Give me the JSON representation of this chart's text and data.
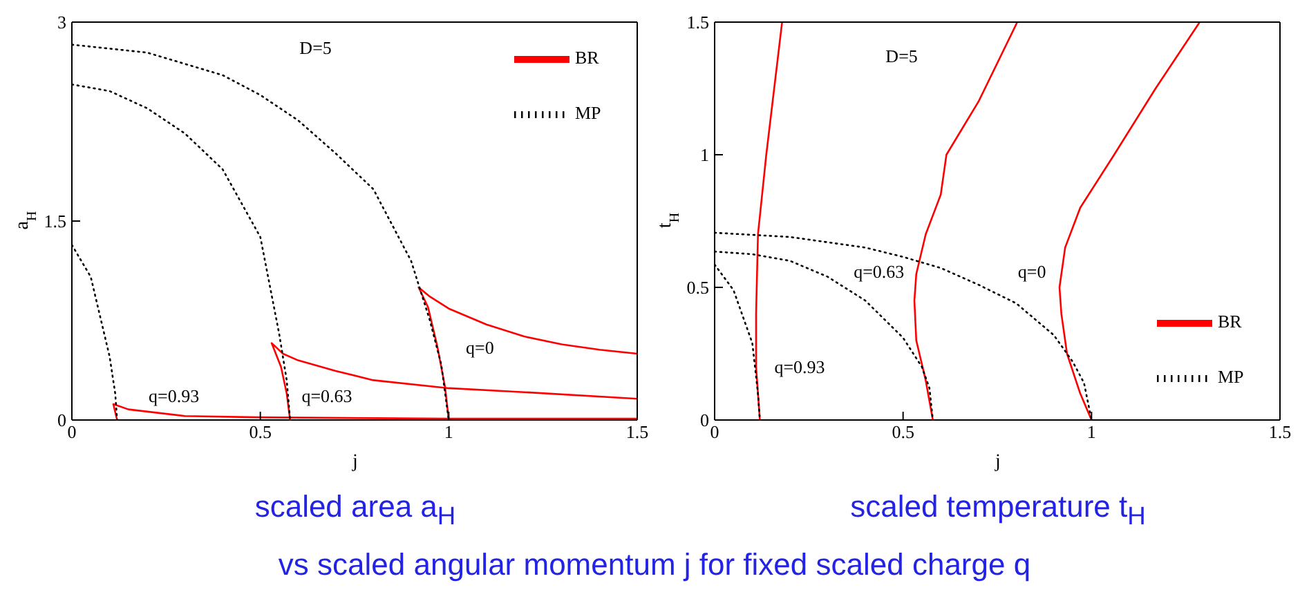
{
  "chart_data": [
    {
      "type": "line",
      "title": "scaled area a$_{H}$",
      "xlabel": "j",
      "ylabel": "a$_{H}$",
      "xlim": [
        0,
        1.5
      ],
      "ylim": [
        0,
        3
      ],
      "xticks": [
        0,
        0.5,
        1,
        1.5
      ],
      "yticks": [
        0,
        1.5,
        3
      ],
      "legend": "top right",
      "series": [
        {
          "name": "BR",
          "color": "#ff0000",
          "line_style": "solid",
          "x": [
            1.0,
            0.99,
            0.97,
            0.945,
            0.92,
            0.95,
            1.0,
            1.1,
            1.2,
            1.3,
            1.4,
            1.5
          ],
          "values": [
            0,
            0.25,
            0.55,
            0.85,
            1.0,
            0.93,
            0.84,
            0.72,
            0.63,
            0.57,
            0.53,
            0.5
          ]
        },
        {
          "color": "#ff0000",
          "line_style": "solid",
          "x": [
            0.579,
            0.57,
            0.555,
            0.53,
            0.56,
            0.6,
            0.7,
            0.8,
            1.0,
            1.2,
            1.5
          ],
          "values": [
            0,
            0.2,
            0.4,
            0.58,
            0.5,
            0.45,
            0.37,
            0.3,
            0.24,
            0.21,
            0.16
          ]
        },
        {
          "color": "#ff0000",
          "line_style": "solid",
          "x": [
            0.12,
            0.115,
            0.11,
            0.15,
            0.3,
            0.5,
            1.0,
            1.5
          ],
          "values": [
            0,
            0.06,
            0.12,
            0.08,
            0.03,
            0.02,
            0.01,
            0.01
          ]
        },
        {
          "name": "MP",
          "color": "#000000",
          "line_style": "dotted",
          "x": [
            0,
            0.2,
            0.4,
            0.5,
            0.6,
            0.7,
            0.8,
            0.9,
            0.95,
            0.98,
            1.0
          ],
          "values": [
            2.83,
            2.77,
            2.6,
            2.45,
            2.26,
            2.01,
            1.74,
            1.2,
            0.75,
            0.42,
            0
          ]
        },
        {
          "color": "#000000",
          "line_style": "dotted",
          "x": [
            0,
            0.1,
            0.2,
            0.3,
            0.4,
            0.5,
            0.55,
            0.57,
            0.579
          ],
          "values": [
            2.53,
            2.48,
            2.35,
            2.16,
            1.89,
            1.38,
            0.65,
            0.3,
            0
          ]
        },
        {
          "color": "#000000",
          "line_style": "dotted",
          "x": [
            0,
            0.05,
            0.1,
            0.115,
            0.12
          ],
          "values": [
            1.32,
            1.08,
            0.48,
            0.2,
            0
          ]
        }
      ],
      "annotations": [
        "D=5",
        "q=0.93",
        "q=0.63",
        "q=0"
      ]
    },
    {
      "type": "line",
      "title": "scaled temperature t$_{H}$",
      "xlabel": "j",
      "ylabel": "t$_{H}$",
      "xlim": [
        0,
        1.5
      ],
      "ylim": [
        0,
        1.5
      ],
      "xticks": [
        0,
        0.5,
        1,
        1.5
      ],
      "yticks": [
        0,
        0.5,
        1,
        1.5
      ],
      "legend": "bottom right",
      "series": [
        {
          "name": "BR",
          "color": "#ff0000",
          "line_style": "solid",
          "x": [
            1.0,
            0.97,
            0.935,
            0.92,
            0.915,
            0.93,
            0.97,
            1.06,
            1.17,
            1.287
          ],
          "values": [
            0,
            0.1,
            0.25,
            0.4,
            0.5,
            0.65,
            0.8,
            1.0,
            1.25,
            1.5
          ]
        },
        {
          "color": "#ff0000",
          "line_style": "solid",
          "x": [
            0.579,
            0.56,
            0.535,
            0.53,
            0.535,
            0.56,
            0.6,
            0.615,
            0.7,
            0.803
          ],
          "values": [
            0,
            0.15,
            0.3,
            0.45,
            0.55,
            0.7,
            0.85,
            1.0,
            1.2,
            1.5
          ]
        },
        {
          "color": "#ff0000",
          "line_style": "solid",
          "x": [
            0.12,
            0.11,
            0.11,
            0.115,
            0.137,
            0.179
          ],
          "values": [
            0,
            0.2,
            0.4,
            0.7,
            1.0,
            1.5
          ]
        },
        {
          "name": "MP",
          "color": "#000000",
          "line_style": "dotted",
          "x": [
            0,
            0.2,
            0.4,
            0.5,
            0.6,
            0.7,
            0.8,
            0.9,
            0.95,
            0.98,
            1.0
          ],
          "values": [
            0.706,
            0.69,
            0.65,
            0.615,
            0.573,
            0.51,
            0.44,
            0.32,
            0.22,
            0.14,
            0
          ]
        },
        {
          "color": "#000000",
          "line_style": "dotted",
          "x": [
            0,
            0.1,
            0.2,
            0.3,
            0.4,
            0.5,
            0.55,
            0.57,
            0.579
          ],
          "values": [
            0.635,
            0.625,
            0.6,
            0.54,
            0.45,
            0.31,
            0.2,
            0.12,
            0
          ]
        },
        {
          "color": "#000000",
          "line_style": "dotted",
          "x": [
            0,
            0.05,
            0.1,
            0.115,
            0.12
          ],
          "values": [
            0.586,
            0.49,
            0.29,
            0.1,
            0
          ]
        }
      ],
      "annotations": [
        "D=5",
        "q=0.93",
        "q=0.63",
        "q=0",
        "vs scaled angular momentum j for fixed scaled charge q"
      ]
    }
  ]
}
